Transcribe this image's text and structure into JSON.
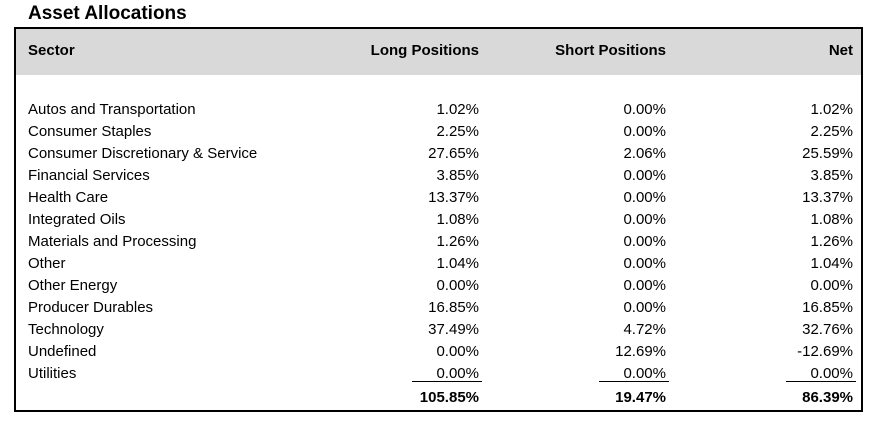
{
  "title": "Asset Allocations",
  "table": {
    "headers": {
      "sector": "Sector",
      "long": "Long Positions",
      "short": "Short Positions",
      "net": "Net"
    },
    "rows": [
      {
        "sector": "Autos and Transportation",
        "long": "1.02%",
        "short": "0.00%",
        "net": "1.02%"
      },
      {
        "sector": "Consumer Staples",
        "long": "2.25%",
        "short": "0.00%",
        "net": "2.25%"
      },
      {
        "sector": "Consumer Discretionary & Service",
        "long": "27.65%",
        "short": "2.06%",
        "net": "25.59%"
      },
      {
        "sector": "Financial Services",
        "long": "3.85%",
        "short": "0.00%",
        "net": "3.85%"
      },
      {
        "sector": "Health Care",
        "long": "13.37%",
        "short": "0.00%",
        "net": "13.37%"
      },
      {
        "sector": "Integrated Oils",
        "long": "1.08%",
        "short": "0.00%",
        "net": "1.08%"
      },
      {
        "sector": "Materials and Processing",
        "long": "1.26%",
        "short": "0.00%",
        "net": "1.26%"
      },
      {
        "sector": "Other",
        "long": "1.04%",
        "short": "0.00%",
        "net": "1.04%"
      },
      {
        "sector": "Other Energy",
        "long": "0.00%",
        "short": "0.00%",
        "net": "0.00%"
      },
      {
        "sector": "Producer Durables",
        "long": "16.85%",
        "short": "0.00%",
        "net": "16.85%"
      },
      {
        "sector": "Technology",
        "long": "37.49%",
        "short": "4.72%",
        "net": "32.76%"
      },
      {
        "sector": "Undefined",
        "long": "0.00%",
        "short": "12.69%",
        "net": "-12.69%"
      },
      {
        "sector": "Utilities",
        "long": "0.00%",
        "short": "0.00%",
        "net": "0.00%"
      }
    ],
    "totals": {
      "long": "105.85%",
      "short": "19.47%",
      "net": "86.39%"
    }
  }
}
